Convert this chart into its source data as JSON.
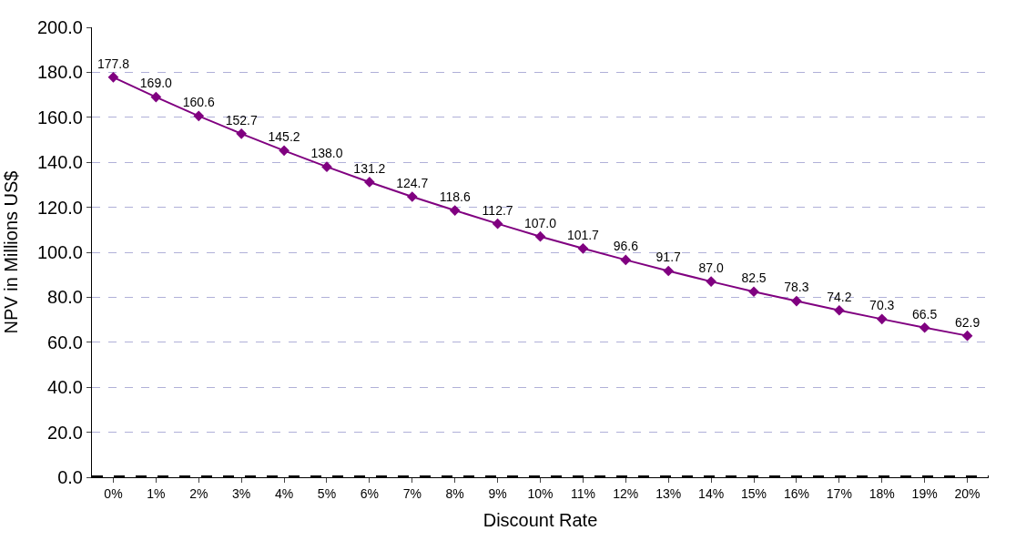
{
  "chart_data": {
    "type": "line",
    "xlabel": "Discount Rate",
    "ylabel": "NPV in Millions US$",
    "categories": [
      "0%",
      "1%",
      "2%",
      "3%",
      "4%",
      "5%",
      "6%",
      "7%",
      "8%",
      "9%",
      "10%",
      "11%",
      "12%",
      "13%",
      "14%",
      "15%",
      "16%",
      "17%",
      "18%",
      "19%",
      "20%"
    ],
    "series": [
      {
        "color": "#800080",
        "values": [
          177.8,
          169.0,
          160.6,
          152.7,
          145.2,
          138.0,
          131.2,
          124.7,
          118.6,
          112.7,
          107.0,
          101.7,
          96.6,
          91.7,
          87.0,
          82.5,
          78.3,
          74.2,
          70.3,
          66.5,
          62.9
        ],
        "value_labels": [
          "177.8",
          "169.0",
          "160.6",
          "152.7",
          "145.2",
          "138.0",
          "131.2",
          "124.7",
          "118.6",
          "112.7",
          "107.0",
          "101.7",
          "96.6",
          "91.7",
          "87.0",
          "82.5",
          "78.3",
          "74.2",
          "70.3",
          "66.5",
          "62.9"
        ]
      }
    ],
    "ylim": [
      0,
      200
    ],
    "yticks": [
      {
        "value": 0,
        "label": "0.0"
      },
      {
        "value": 20,
        "label": "20.0"
      },
      {
        "value": 40,
        "label": "40.0"
      },
      {
        "value": 60,
        "label": "60.0"
      },
      {
        "value": 80,
        "label": "80.0"
      },
      {
        "value": 100,
        "label": "100.0"
      },
      {
        "value": 120,
        "label": "120.0"
      },
      {
        "value": 140,
        "label": "140.0"
      },
      {
        "value": 160,
        "label": "160.0"
      },
      {
        "value": 180,
        "label": "180.0"
      },
      {
        "value": 200,
        "label": "200.0"
      }
    ],
    "ref_lines": [
      {
        "axis": "y",
        "value": 0,
        "color": "#000000",
        "line_style": "dashed"
      }
    ],
    "grid": "y",
    "marker": "diamond",
    "line_style": "solid",
    "legend": false
  }
}
